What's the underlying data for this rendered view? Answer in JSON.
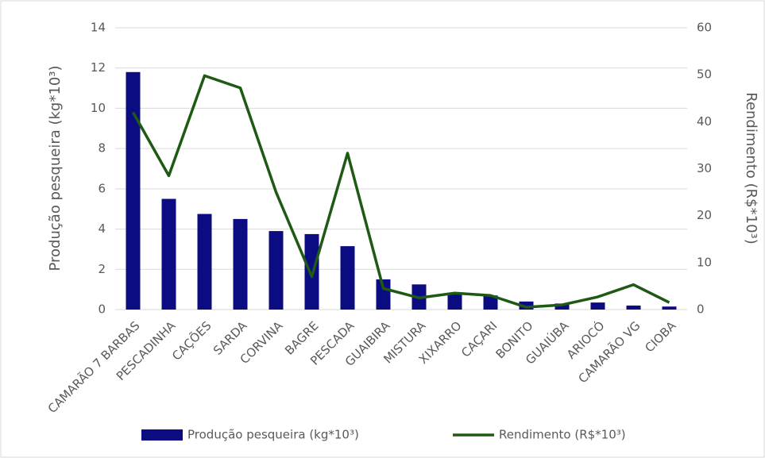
{
  "chart_data": {
    "type": "bar_line",
    "categories": [
      "CAMARÃO 7 BARBAS",
      "PESCADINHA",
      "CAÇÕES",
      "SARDA",
      "CORVINA",
      "BAGRE",
      "PESCADA",
      "GUAIBIRA",
      "MISTURA",
      "XIXARRO",
      "CAÇARI",
      "BONITO",
      "GUAIÚBA",
      "ARIOCÓ",
      "CAMARÃO VG",
      "CIOBA"
    ],
    "series": [
      {
        "name": "Produção pesqueira (kg*10³)",
        "color": "#0b0b82",
        "type": "bar",
        "values": [
          11.8,
          5.5,
          4.75,
          4.5,
          3.9,
          3.75,
          3.15,
          1.5,
          1.25,
          0.8,
          0.7,
          0.4,
          0.3,
          0.35,
          0.2,
          0.15
        ]
      },
      {
        "name": "Rendimento (R$*10³)",
        "color": "#1f5a14",
        "type": "line",
        "axis": "y2",
        "values": [
          42,
          28.5,
          49.8,
          47.2,
          25,
          7,
          33.3,
          4.5,
          2.5,
          3.5,
          3,
          0.5,
          1,
          2.7,
          5.3,
          1.5
        ]
      }
    ],
    "y_label": "Produção pesqueira (kg*10³)",
    "y2_label": "Rendimento (R$*10³)",
    "ylim": [
      0,
      14
    ],
    "yticks": [
      0,
      2,
      4,
      6,
      8,
      10,
      12,
      14
    ],
    "y2lim": [
      0,
      60
    ],
    "y2ticks": [
      0,
      10,
      20,
      30,
      40,
      50,
      60
    ],
    "grid": true,
    "legend": "bottom"
  }
}
